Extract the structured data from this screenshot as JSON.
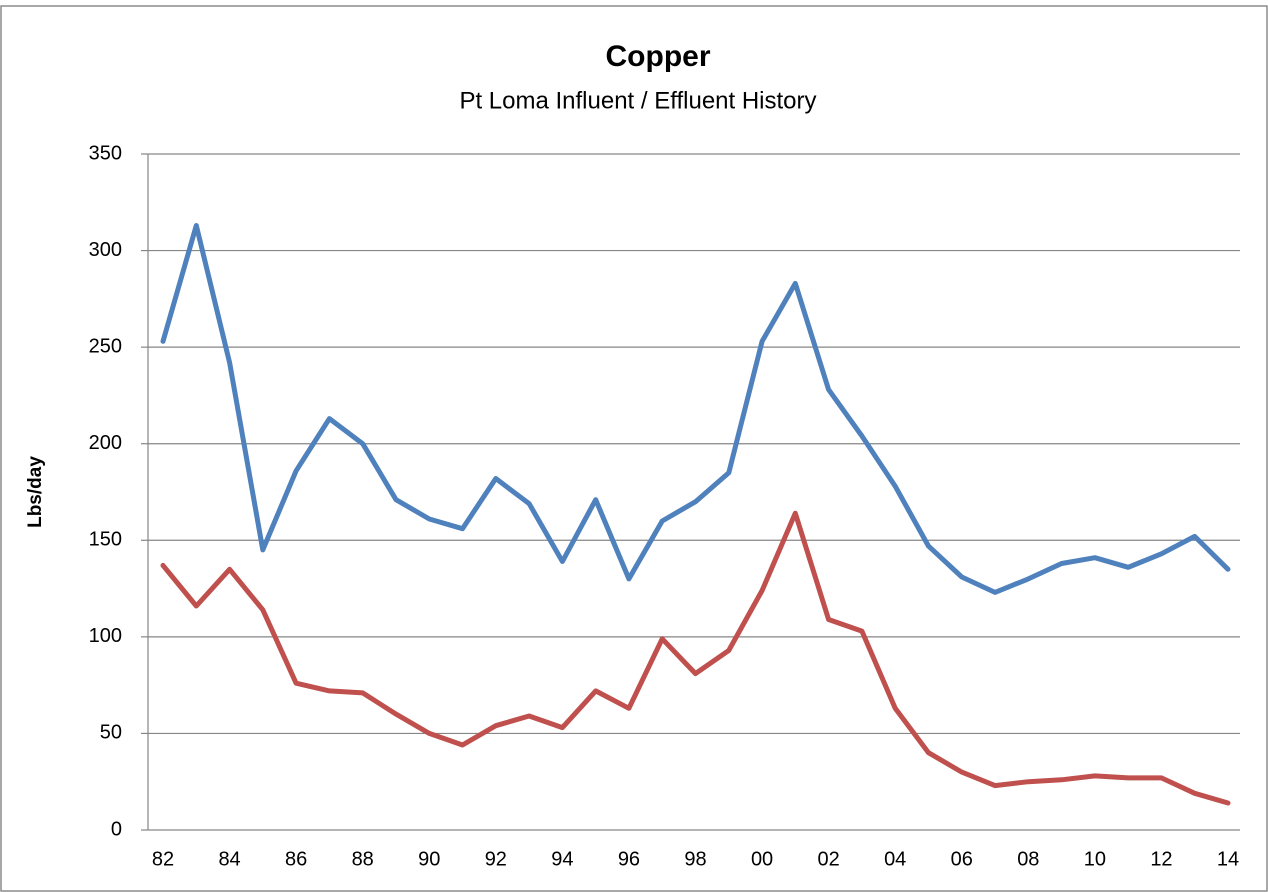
{
  "chart_data": {
    "type": "line",
    "title": "Copper",
    "subtitle": "Pt Loma Influent / Effluent History",
    "y_label": "Lbs/day",
    "categories": [
      "82",
      null,
      "84",
      null,
      "86",
      null,
      "88",
      null,
      "90",
      null,
      "92",
      null,
      "94",
      null,
      "96",
      null,
      "98",
      null,
      "00",
      null,
      "02",
      null,
      "04",
      null,
      "06",
      null,
      "08",
      null,
      "10",
      null,
      "12",
      null,
      "14"
    ],
    "series": [
      {
        "color": "#4f81bd",
        "values": [
          253,
          313,
          242,
          145,
          186,
          213,
          200,
          171,
          161,
          156,
          182,
          169,
          139,
          171,
          130,
          160,
          170,
          185,
          253,
          283,
          228,
          204,
          178,
          147,
          131,
          123,
          130,
          138,
          141,
          136,
          143,
          152,
          135
        ]
      },
      {
        "color": "#c0504d",
        "values": [
          137,
          116,
          135,
          114,
          76,
          72,
          71,
          60,
          50,
          44,
          54,
          59,
          53,
          72,
          63,
          99,
          81,
          93,
          124,
          164,
          109,
          103,
          63,
          40,
          30,
          23,
          25,
          26,
          28,
          27,
          27,
          19,
          14
        ]
      }
    ],
    "ylim": [
      0,
      350
    ],
    "yticks": [
      0,
      50,
      100,
      150,
      200,
      250,
      300,
      350
    ],
    "grid": true
  }
}
